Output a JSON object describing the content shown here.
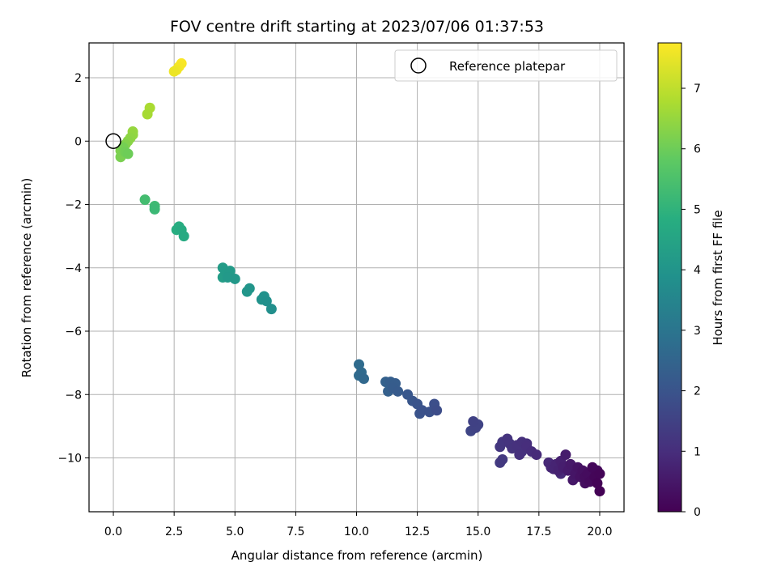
{
  "chart_data": {
    "type": "scatter",
    "title": "FOV centre drift starting at 2023/07/06 01:37:53",
    "xlabel": "Angular distance from reference (arcmin)",
    "ylabel": "Rotation from reference (arcmin)",
    "xlim": [
      -1.0,
      21.0
    ],
    "ylim": [
      -11.7,
      3.1
    ],
    "xticks": [
      0.0,
      2.5,
      5.0,
      7.5,
      10.0,
      12.5,
      15.0,
      17.5,
      20.0
    ],
    "xtick_labels": [
      "0.0",
      "2.5",
      "5.0",
      "7.5",
      "10.0",
      "12.5",
      "15.0",
      "17.5",
      "20.0"
    ],
    "yticks": [
      2,
      0,
      -2,
      -4,
      -6,
      -8,
      -10
    ],
    "ytick_labels": [
      "2",
      "0",
      "−2",
      "−4",
      "−6",
      "−8",
      "−10"
    ],
    "grid": true,
    "colorbar": {
      "label": "Hours from first FF file",
      "colormap": "viridis",
      "range": [
        0,
        7.75
      ],
      "ticks": [
        0,
        1,
        2,
        3,
        4,
        5,
        6,
        7
      ],
      "tick_labels": [
        "0",
        "1",
        "2",
        "3",
        "4",
        "5",
        "6",
        "7"
      ]
    },
    "legend": {
      "position": "upper right",
      "entries": [
        {
          "label": "Reference platepar",
          "marker": "open-circle"
        }
      ]
    },
    "reference_point": {
      "x": 0.0,
      "y": 0.0
    },
    "points": [
      {
        "x": 20.0,
        "y": -11.05,
        "t": 0.02
      },
      {
        "x": 19.9,
        "y": -10.8,
        "t": 0.05
      },
      {
        "x": 20.0,
        "y": -10.5,
        "t": 0.08
      },
      {
        "x": 19.8,
        "y": -10.6,
        "t": 0.1
      },
      {
        "x": 19.7,
        "y": -10.3,
        "t": 0.14
      },
      {
        "x": 19.9,
        "y": -10.4,
        "t": 0.16
      },
      {
        "x": 19.6,
        "y": -10.75,
        "t": 0.2
      },
      {
        "x": 19.5,
        "y": -10.5,
        "t": 0.24
      },
      {
        "x": 19.4,
        "y": -10.8,
        "t": 0.28
      },
      {
        "x": 19.3,
        "y": -10.4,
        "t": 0.32
      },
      {
        "x": 19.2,
        "y": -10.6,
        "t": 0.36
      },
      {
        "x": 19.1,
        "y": -10.3,
        "t": 0.4
      },
      {
        "x": 19.0,
        "y": -10.5,
        "t": 0.44
      },
      {
        "x": 18.9,
        "y": -10.7,
        "t": 0.48
      },
      {
        "x": 18.8,
        "y": -10.2,
        "t": 0.52
      },
      {
        "x": 18.7,
        "y": -10.4,
        "t": 0.56
      },
      {
        "x": 18.6,
        "y": -9.9,
        "t": 0.6
      },
      {
        "x": 18.5,
        "y": -10.3,
        "t": 0.64
      },
      {
        "x": 18.4,
        "y": -10.1,
        "t": 0.68
      },
      {
        "x": 18.3,
        "y": -10.4,
        "t": 0.72
      },
      {
        "x": 18.2,
        "y": -10.2,
        "t": 0.76
      },
      {
        "x": 18.1,
        "y": -10.35,
        "t": 0.8
      },
      {
        "x": 18.0,
        "y": -10.3,
        "t": 0.84
      },
      {
        "x": 17.9,
        "y": -10.15,
        "t": 0.88
      },
      {
        "x": 18.4,
        "y": -10.5,
        "t": 0.9
      },
      {
        "x": 19.0,
        "y": -10.6,
        "t": 0.5
      },
      {
        "x": 19.4,
        "y": -10.6,
        "t": 0.26
      },
      {
        "x": 17.2,
        "y": -9.8,
        "t": 0.96
      },
      {
        "x": 17.0,
        "y": -9.65,
        "t": 1.0
      },
      {
        "x": 16.8,
        "y": -9.5,
        "t": 1.04
      },
      {
        "x": 16.6,
        "y": -9.6,
        "t": 1.08
      },
      {
        "x": 16.8,
        "y": -9.8,
        "t": 1.1
      },
      {
        "x": 17.0,
        "y": -9.55,
        "t": 1.02
      },
      {
        "x": 17.4,
        "y": -9.9,
        "t": 0.93
      },
      {
        "x": 16.4,
        "y": -9.7,
        "t": 1.12
      },
      {
        "x": 16.2,
        "y": -9.4,
        "t": 1.16
      },
      {
        "x": 16.0,
        "y": -9.5,
        "t": 1.2
      },
      {
        "x": 15.9,
        "y": -9.65,
        "t": 1.24
      },
      {
        "x": 16.3,
        "y": -9.55,
        "t": 1.14
      },
      {
        "x": 16.0,
        "y": -10.05,
        "t": 1.28
      },
      {
        "x": 15.9,
        "y": -10.15,
        "t": 1.3
      },
      {
        "x": 16.7,
        "y": -9.9,
        "t": 1.06
      },
      {
        "x": 14.8,
        "y": -8.85,
        "t": 1.5
      },
      {
        "x": 15.0,
        "y": -8.95,
        "t": 1.55
      },
      {
        "x": 14.7,
        "y": -9.15,
        "t": 1.6
      },
      {
        "x": 14.9,
        "y": -9.05,
        "t": 1.52
      },
      {
        "x": 13.3,
        "y": -8.5,
        "t": 1.8
      },
      {
        "x": 13.2,
        "y": -8.3,
        "t": 1.85
      },
      {
        "x": 13.0,
        "y": -8.55,
        "t": 1.9
      },
      {
        "x": 12.7,
        "y": -8.5,
        "t": 1.95
      },
      {
        "x": 12.5,
        "y": -8.3,
        "t": 2.0
      },
      {
        "x": 12.3,
        "y": -8.2,
        "t": 2.05
      },
      {
        "x": 12.1,
        "y": -8.0,
        "t": 2.1
      },
      {
        "x": 12.6,
        "y": -8.6,
        "t": 1.97
      },
      {
        "x": 11.7,
        "y": -7.9,
        "t": 2.2
      },
      {
        "x": 11.5,
        "y": -7.8,
        "t": 2.25
      },
      {
        "x": 11.4,
        "y": -7.6,
        "t": 2.3
      },
      {
        "x": 11.3,
        "y": -7.9,
        "t": 2.35
      },
      {
        "x": 11.2,
        "y": -7.6,
        "t": 2.4
      },
      {
        "x": 11.6,
        "y": -7.65,
        "t": 2.28
      },
      {
        "x": 10.3,
        "y": -7.5,
        "t": 2.6
      },
      {
        "x": 10.2,
        "y": -7.3,
        "t": 2.65
      },
      {
        "x": 10.1,
        "y": -7.05,
        "t": 2.7
      },
      {
        "x": 10.1,
        "y": -7.4,
        "t": 2.68
      },
      {
        "x": 6.5,
        "y": -5.3,
        "t": 3.8
      },
      {
        "x": 6.3,
        "y": -5.05,
        "t": 3.85
      },
      {
        "x": 6.2,
        "y": -4.9,
        "t": 3.9
      },
      {
        "x": 6.1,
        "y": -5.0,
        "t": 3.92
      },
      {
        "x": 5.6,
        "y": -4.65,
        "t": 4.0
      },
      {
        "x": 5.5,
        "y": -4.75,
        "t": 4.05
      },
      {
        "x": 5.0,
        "y": -4.35,
        "t": 4.1
      },
      {
        "x": 4.7,
        "y": -4.3,
        "t": 4.15
      },
      {
        "x": 4.6,
        "y": -4.1,
        "t": 4.2
      },
      {
        "x": 4.5,
        "y": -4.0,
        "t": 4.25
      },
      {
        "x": 4.5,
        "y": -4.3,
        "t": 4.28
      },
      {
        "x": 4.8,
        "y": -4.1,
        "t": 4.18
      },
      {
        "x": 2.9,
        "y": -3.0,
        "t": 4.7
      },
      {
        "x": 2.8,
        "y": -2.8,
        "t": 4.75
      },
      {
        "x": 2.7,
        "y": -2.7,
        "t": 4.8
      },
      {
        "x": 2.6,
        "y": -2.8,
        "t": 4.82
      },
      {
        "x": 1.7,
        "y": -2.15,
        "t": 5.2
      },
      {
        "x": 1.7,
        "y": -2.05,
        "t": 5.25
      },
      {
        "x": 1.3,
        "y": -1.85,
        "t": 5.35
      },
      {
        "x": 0.6,
        "y": -0.4,
        "t": 6.0
      },
      {
        "x": 0.5,
        "y": -0.35,
        "t": 6.05
      },
      {
        "x": 0.4,
        "y": -0.2,
        "t": 6.1
      },
      {
        "x": 0.3,
        "y": -0.5,
        "t": 6.15
      },
      {
        "x": 0.3,
        "y": -0.3,
        "t": 6.2
      },
      {
        "x": 0.5,
        "y": -0.1,
        "t": 6.25
      },
      {
        "x": 0.6,
        "y": 0.0,
        "t": 6.35
      },
      {
        "x": 0.7,
        "y": 0.1,
        "t": 6.4
      },
      {
        "x": 0.8,
        "y": 0.2,
        "t": 6.45
      },
      {
        "x": 0.8,
        "y": 0.3,
        "t": 6.5
      },
      {
        "x": 1.4,
        "y": 0.85,
        "t": 6.7
      },
      {
        "x": 1.5,
        "y": 1.05,
        "t": 6.75
      },
      {
        "x": 2.5,
        "y": 2.2,
        "t": 7.55
      },
      {
        "x": 2.6,
        "y": 2.25,
        "t": 7.6
      },
      {
        "x": 2.7,
        "y": 2.35,
        "t": 7.65
      },
      {
        "x": 2.8,
        "y": 2.45,
        "t": 7.7
      }
    ]
  }
}
